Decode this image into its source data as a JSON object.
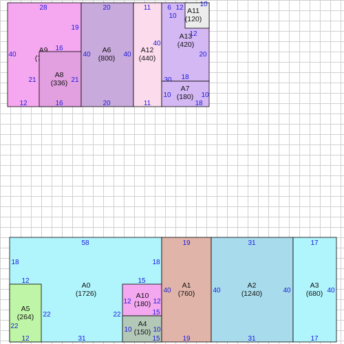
{
  "areas": [
    {
      "name": "A9",
      "value": "(784)",
      "color": "#f5a8f0",
      "dims": {
        "top": "28",
        "left": "40",
        "right": "19",
        "bottom": "12"
      }
    },
    {
      "name": "A8",
      "value": "(336)",
      "color": "#e3a0e0",
      "dims": {
        "top": "16",
        "left": "21",
        "right": "21",
        "bottom": "16"
      }
    },
    {
      "name": "A6",
      "value": "(800)",
      "color": "#c8aadc",
      "dims": {
        "top": "20",
        "left": "40",
        "right": "40",
        "bottom": "20"
      }
    },
    {
      "name": "A12",
      "value": "(440)",
      "color": "#fcdcec",
      "dims": {
        "top": "11",
        "left": "40",
        "bottom": "11"
      }
    },
    {
      "name": "A13",
      "value": "(420)",
      "color": "#d4b8f4",
      "dims": {
        "top": "6",
        "left": "30",
        "right": "20",
        "bottom": "18",
        "inner_a": "10",
        "inner_b": "12",
        "inner_c": "12"
      }
    },
    {
      "name": "A11",
      "value": "(120)",
      "color": "#ececec",
      "dims": {
        "top": "10"
      }
    },
    {
      "name": "A7",
      "value": "(180)",
      "color": "#d4b8f4",
      "dims": {
        "left": "10",
        "right": "10",
        "bottom": "18"
      }
    },
    {
      "name": "A0",
      "value": "(1726)",
      "color": "#b0f4fc",
      "dims": {
        "top": "58",
        "left": "18",
        "right": "18",
        "bottom": "31",
        "inner_a": "22",
        "inner_b": "22"
      }
    },
    {
      "name": "A5",
      "value": "(264)",
      "color": "#bff5a6",
      "dims": {
        "top": "12",
        "left": "22",
        "bottom": "12"
      }
    },
    {
      "name": "A10",
      "value": "(180)",
      "color": "#f4a8f0",
      "dims": {
        "top": "15",
        "left": "12",
        "right": "12",
        "bottom": "15"
      }
    },
    {
      "name": "A4",
      "value": "(150)",
      "color": "#b4c8b8",
      "dims": {
        "left": "10",
        "right": "10",
        "bottom": "15"
      }
    },
    {
      "name": "A1",
      "value": "(760)",
      "color": "#e0b4a8",
      "dims": {
        "top": "19",
        "left": "40",
        "bottom": "19"
      }
    },
    {
      "name": "A2",
      "value": "(1240)",
      "color": "#a8dcec",
      "dims": {
        "top": "31",
        "left": "40",
        "right": "40",
        "bottom": "31"
      }
    },
    {
      "name": "A3",
      "value": "(680)",
      "color": "#b0f4fc",
      "dims": {
        "top": "17",
        "right": "40",
        "bottom": "17"
      }
    }
  ]
}
